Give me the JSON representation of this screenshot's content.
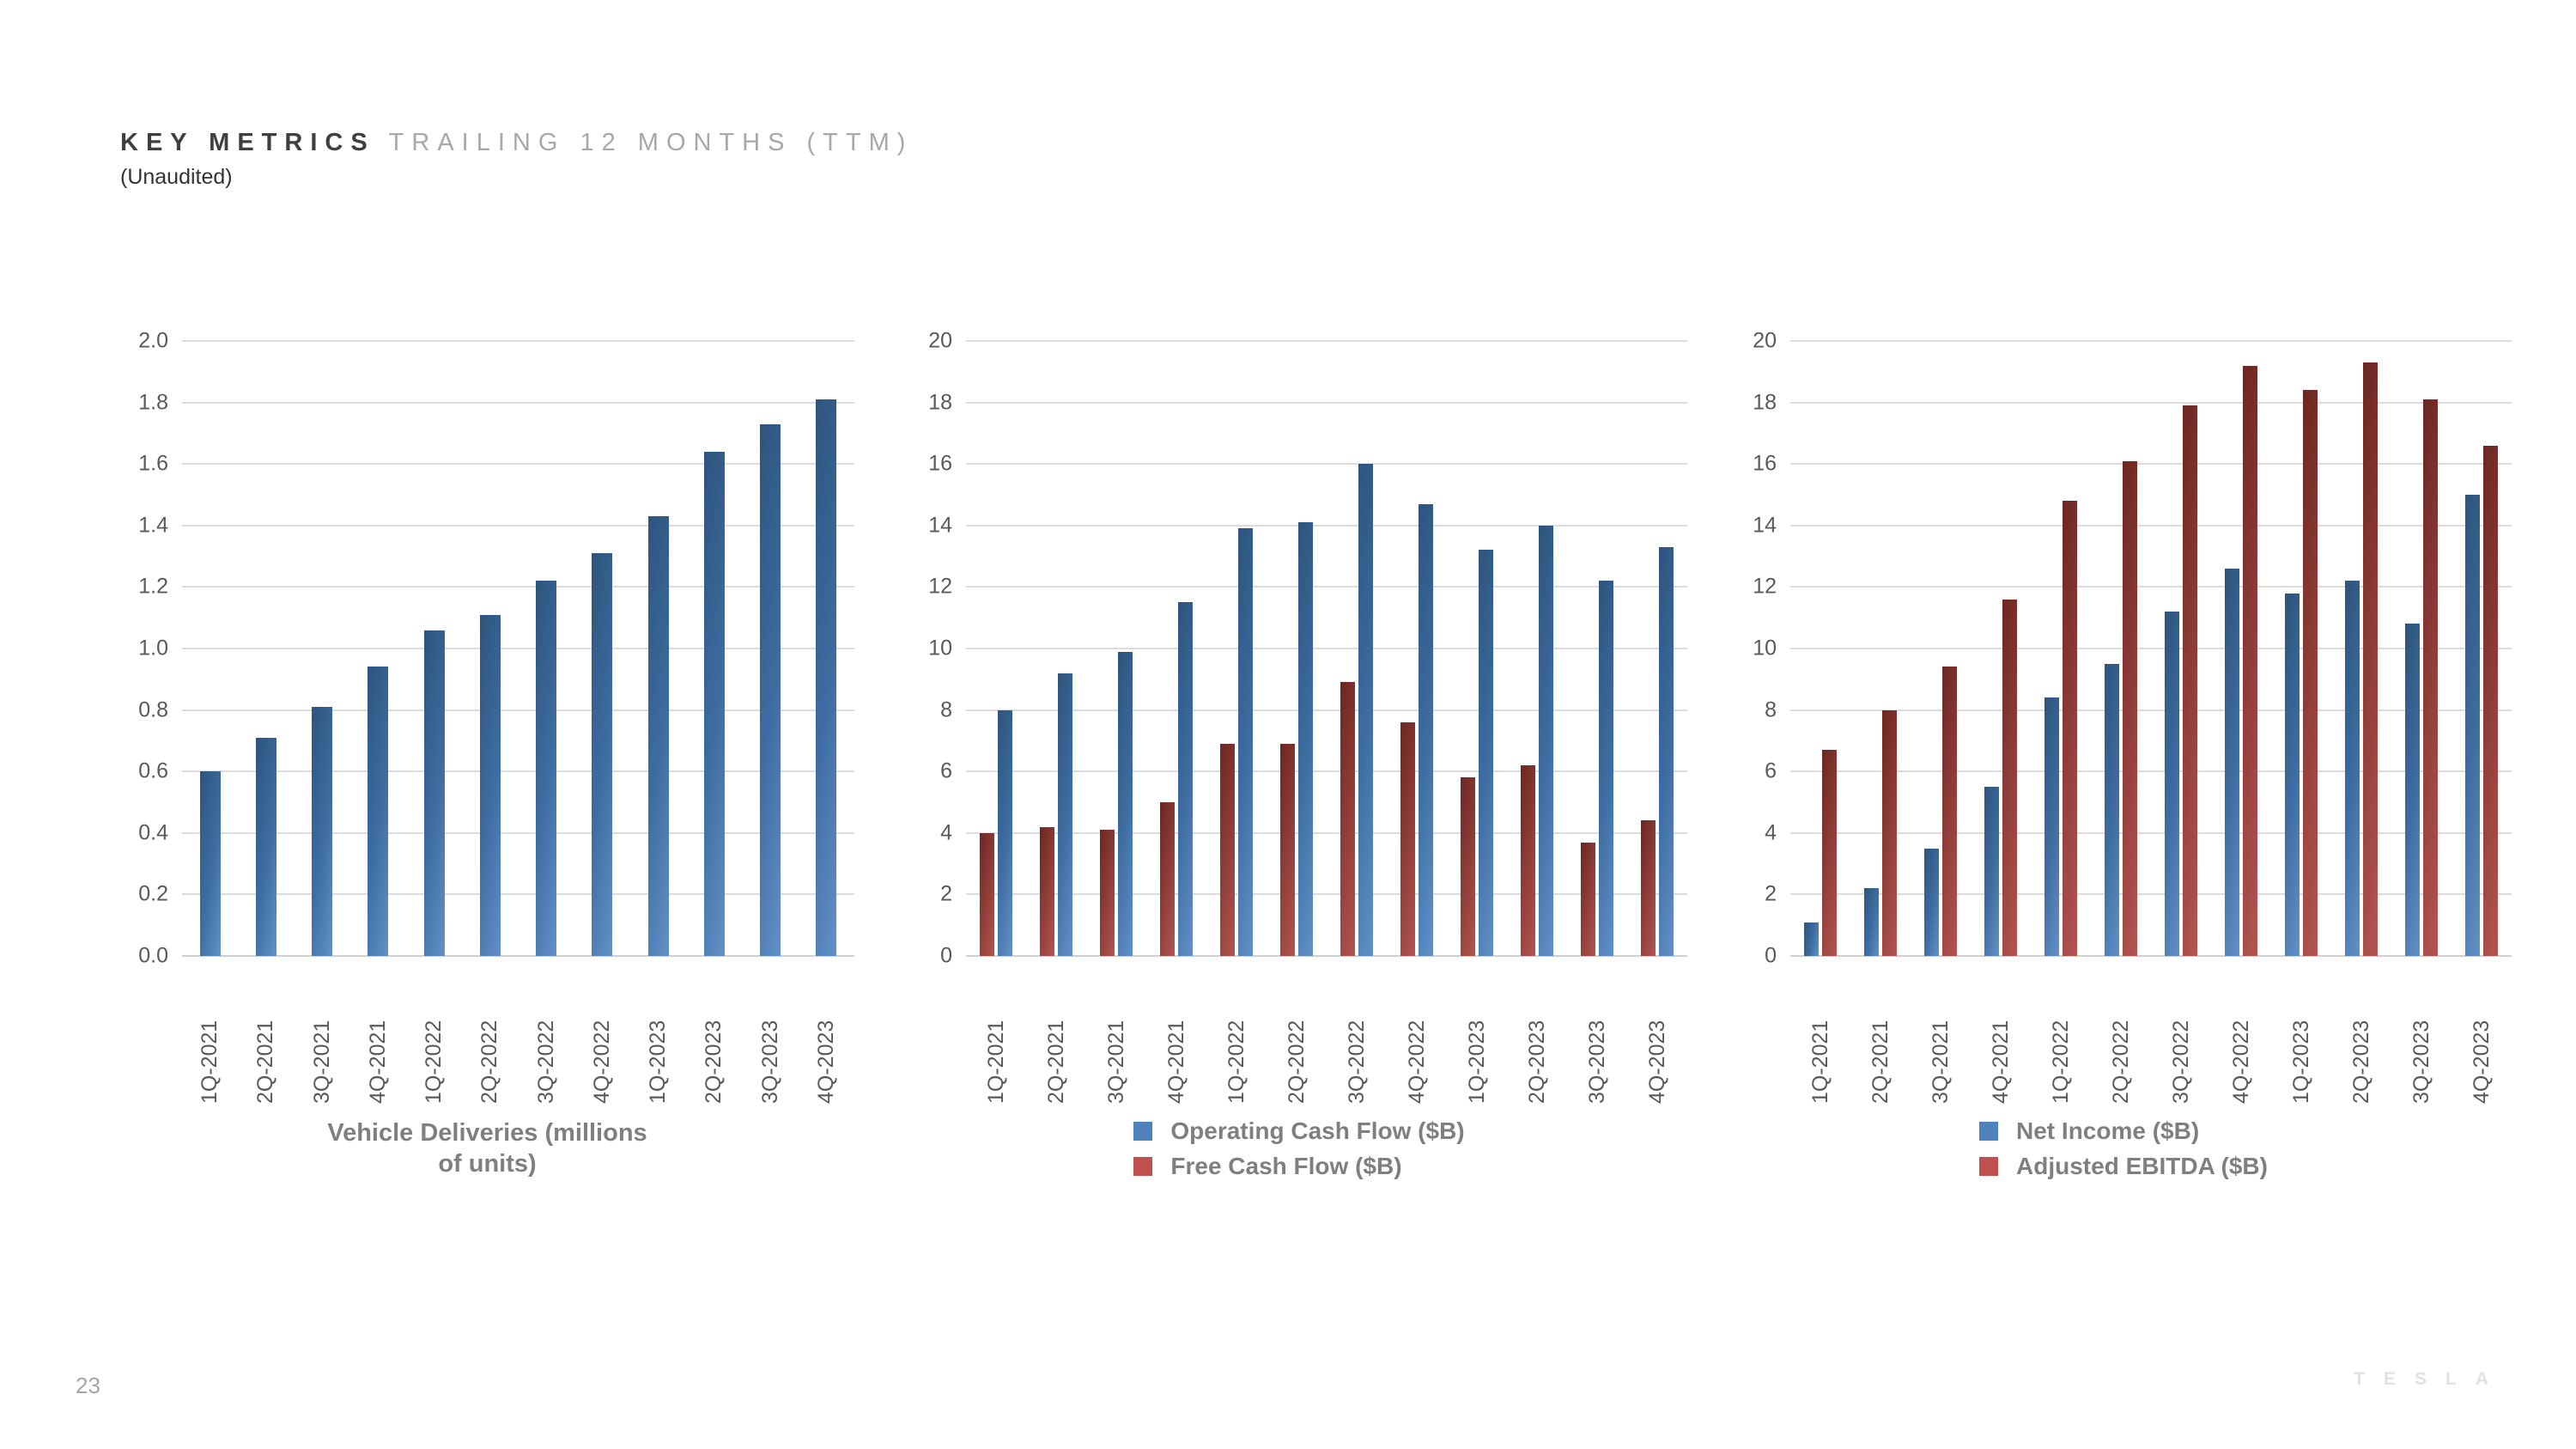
{
  "slide": {
    "title_primary": "KEY METRICS",
    "title_secondary": "TRAILING 12 MONTHS (TTM)",
    "subtitle": "(Unaudited)",
    "page_number": "23",
    "brand_wordmark": "TESLA"
  },
  "colors": {
    "blue_bar": "#4f81bd",
    "red_bar": "#c0504d",
    "gridline": "#dcdcdc",
    "tick_text": "#595959",
    "label_text": "#7f7f7f"
  },
  "chart_data": [
    {
      "type": "bar",
      "title": "Vehicle Deliveries (millions of units)",
      "caption_lines": [
        "Vehicle Deliveries (millions",
        "of units)"
      ],
      "categories": [
        "1Q-2021",
        "2Q-2021",
        "3Q-2021",
        "4Q-2021",
        "1Q-2022",
        "2Q-2022",
        "3Q-2022",
        "4Q-2022",
        "1Q-2023",
        "2Q-2023",
        "3Q-2023",
        "4Q-2023"
      ],
      "y_ticks": [
        "2.0",
        "1.8",
        "1.6",
        "1.4",
        "1.2",
        "1.0",
        "0.8",
        "0.6",
        "0.4",
        "0.2",
        "0.0"
      ],
      "ylim": [
        0,
        2.0
      ],
      "grid": true,
      "legend_position": "none",
      "series": [
        {
          "name": "Vehicle Deliveries (millions of units)",
          "color_key": "blue",
          "values": [
            0.6,
            0.71,
            0.81,
            0.94,
            1.06,
            1.11,
            1.22,
            1.31,
            1.43,
            1.64,
            1.73,
            1.81
          ]
        }
      ],
      "legend": []
    },
    {
      "type": "bar",
      "title": "Operating Cash Flow and Free Cash Flow ($B)",
      "caption_lines": [],
      "categories": [
        "1Q-2021",
        "2Q-2021",
        "3Q-2021",
        "4Q-2021",
        "1Q-2022",
        "2Q-2022",
        "3Q-2022",
        "4Q-2022",
        "1Q-2023",
        "2Q-2023",
        "3Q-2023",
        "4Q-2023"
      ],
      "y_ticks": [
        "20",
        "18",
        "16",
        "14",
        "12",
        "10",
        "8",
        "6",
        "4",
        "2",
        "0"
      ],
      "ylim": [
        0,
        20
      ],
      "grid": true,
      "legend_position": "bottom",
      "series": [
        {
          "name": "Free Cash Flow ($B)",
          "color_key": "red",
          "values": [
            4.0,
            4.2,
            4.1,
            5.0,
            6.9,
            6.9,
            8.9,
            7.6,
            5.8,
            6.2,
            3.7,
            4.4
          ]
        },
        {
          "name": "Operating Cash Flow ($B)",
          "color_key": "blue",
          "values": [
            8.0,
            9.2,
            9.9,
            11.5,
            13.9,
            14.1,
            16.0,
            14.7,
            13.2,
            14.0,
            12.2,
            13.3
          ]
        }
      ],
      "legend": [
        {
          "label": "Operating Cash Flow ($B)",
          "color_key": "blue"
        },
        {
          "label": "Free Cash Flow ($B)",
          "color_key": "red"
        }
      ]
    },
    {
      "type": "bar",
      "title": "Net Income and Adjusted EBITDA ($B)",
      "caption_lines": [],
      "categories": [
        "1Q-2021",
        "2Q-2021",
        "3Q-2021",
        "4Q-2021",
        "1Q-2022",
        "2Q-2022",
        "3Q-2022",
        "4Q-2022",
        "1Q-2023",
        "2Q-2023",
        "3Q-2023",
        "4Q-2023"
      ],
      "y_ticks": [
        "20",
        "18",
        "16",
        "14",
        "12",
        "10",
        "8",
        "6",
        "4",
        "2",
        "0"
      ],
      "ylim": [
        0,
        20
      ],
      "grid": true,
      "legend_position": "bottom",
      "series": [
        {
          "name": "Net Income ($B)",
          "color_key": "blue",
          "values": [
            1.1,
            2.2,
            3.5,
            5.5,
            8.4,
            9.5,
            11.2,
            12.6,
            11.8,
            12.2,
            10.8,
            15.0
          ]
        },
        {
          "name": "Adjusted EBITDA ($B)",
          "color_key": "red",
          "values": [
            6.7,
            8.0,
            9.4,
            11.6,
            14.8,
            16.1,
            17.9,
            19.2,
            18.4,
            19.3,
            18.1,
            16.6
          ]
        }
      ],
      "legend": [
        {
          "label": "Net Income ($B)",
          "color_key": "blue"
        },
        {
          "label": "Adjusted EBITDA ($B)",
          "color_key": "red"
        }
      ]
    }
  ]
}
